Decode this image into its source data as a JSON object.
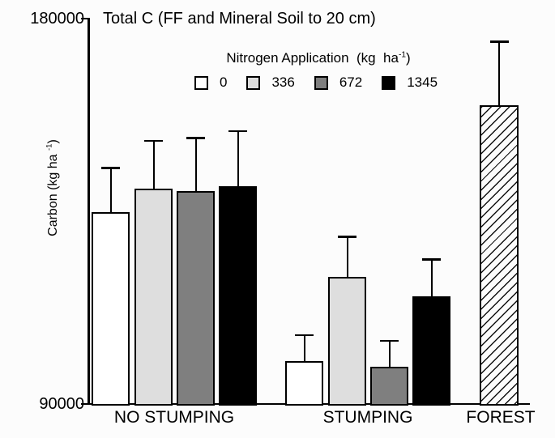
{
  "chart_data": {
    "type": "bar",
    "title": "Total C (FF and Mineral Soil to 20 cm)",
    "ylabel": {
      "pre": "Carbon (kg ha ",
      "sup": "-1",
      "post": ")"
    },
    "ylim": [
      90000,
      180000
    ],
    "yticks": [
      "90000",
      "180000"
    ],
    "grid": false,
    "error_bars": "upper only",
    "legend": {
      "position": "top",
      "title": {
        "pre": "Nitrogen Application  (kg  ha",
        "sup": "-1",
        "post": ")"
      },
      "items": [
        {
          "label": "0",
          "fill": "#ffffff"
        },
        {
          "label": "336",
          "fill": "#dedede"
        },
        {
          "label": "672",
          "fill": "#7f7f7f"
        },
        {
          "label": "1345",
          "fill": "#000000"
        }
      ]
    },
    "groups": [
      {
        "label": "NO STUMPING",
        "bars": [
          {
            "series": "0",
            "value": 134800,
            "error_plus": 10400,
            "fill": "#ffffff"
          },
          {
            "series": "336",
            "value": 140300,
            "error_plus": 11200,
            "fill": "#dedede"
          },
          {
            "series": "672",
            "value": 139700,
            "error_plus": 12500,
            "fill": "#7f7f7f"
          },
          {
            "series": "1345",
            "value": 140900,
            "error_plus": 12900,
            "fill": "#000000"
          }
        ]
      },
      {
        "label": "STUMPING",
        "bars": [
          {
            "series": "0",
            "value": 100000,
            "error_plus": 6100,
            "fill": "#ffffff"
          },
          {
            "series": "336",
            "value": 119700,
            "error_plus": 9400,
            "fill": "#dedede"
          },
          {
            "series": "672",
            "value": 98700,
            "error_plus": 6100,
            "fill": "#7f7f7f"
          },
          {
            "series": "1345",
            "value": 115100,
            "error_plus": 8700,
            "fill": "#000000"
          }
        ]
      },
      {
        "label": "FOREST",
        "bars": [
          {
            "series": "FOREST",
            "value": 159800,
            "error_plus": 14900,
            "fill": "hatch"
          }
        ]
      }
    ]
  }
}
